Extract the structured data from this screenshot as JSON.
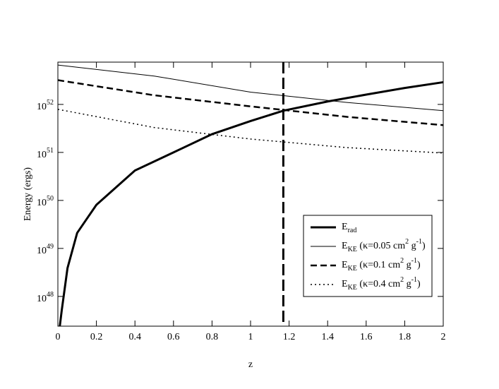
{
  "chart_data": {
    "type": "line",
    "x_label": "z",
    "y_label": "Energy (ergs)",
    "xlim": [
      0,
      2
    ],
    "xticks": [
      0,
      0.2,
      0.4,
      0.6,
      0.8,
      1,
      1.2,
      1.4,
      1.6,
      1.8,
      2
    ],
    "y_scale": "log",
    "ylim": [
      2.4e+47,
      7.6e+52
    ],
    "yticks": [
      {
        "value": 1e+48,
        "label": "10^{48}"
      },
      {
        "value": 1e+49,
        "label": "10^{49}"
      },
      {
        "value": 1e+50,
        "label": "10^{50}"
      },
      {
        "value": 1e+51,
        "label": "10^{51}"
      },
      {
        "value": 1e+52,
        "label": "10^{52}"
      }
    ],
    "legend": "lower right",
    "vertical_line_x": 1.17,
    "series": [
      {
        "name": "E_{rad}",
        "color": "#000000",
        "width": 3,
        "dash": "none",
        "x": [
          0.01,
          0.02,
          0.05,
          0.1,
          0.2,
          0.4,
          0.6,
          0.8,
          1,
          1.17,
          1.4,
          1.6,
          1.8,
          2
        ],
        "values": [
          2.4e+47,
          5.1e+47,
          3.9e+48,
          2.1e+49,
          8.1e+49,
          4.2e+50,
          1e+51,
          2.4e+51,
          4.5e+51,
          7.4e+51,
          1.15e+52,
          1.6e+52,
          2.2e+52,
          2.9e+52
        ]
      },
      {
        "name": "E_{KE} (κ=0.05 cm^{2} g^{-1})",
        "color": "#000000",
        "width": 1,
        "dash": "none",
        "x": [
          0,
          0.5,
          1,
          1.5,
          2
        ],
        "values": [
          6.6e+52,
          3.9e+52,
          1.8e+52,
          1.1e+52,
          7.4e+51
        ]
      },
      {
        "name": "E_{KE} (κ=0.1 cm^{2} g^{-1})",
        "color": "#000000",
        "width": 2.5,
        "dash": "9,5",
        "x": [
          0,
          0.5,
          1,
          1.5,
          2
        ],
        "values": [
          3.2e+52,
          1.55e+52,
          9.1e+51,
          5.5e+51,
          3.7e+51
        ]
      },
      {
        "name": "E_{KE} (κ=0.4 cm^{2} g^{-1})",
        "color": "#000000",
        "width": 1.5,
        "dash": "2,4",
        "x": [
          0,
          0.5,
          1,
          1.5,
          2
        ],
        "values": [
          7.9e+51,
          3.3e+51,
          1.9e+51,
          1.26e+51,
          9.7e+50
        ]
      }
    ]
  }
}
